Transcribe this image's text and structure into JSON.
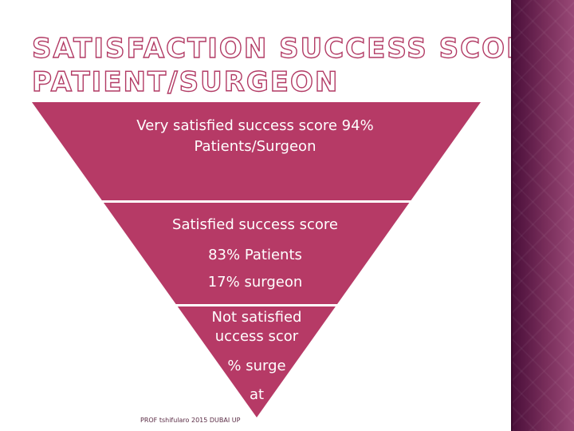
{
  "title": {
    "line1": "SATISFACTION  SUCCESS SCORE",
    "line2": "PATIENT/SURGEON"
  },
  "pyramid": {
    "band1": {
      "line1": "Very satisfied success score 94%",
      "line2": "Patients/Surgeon"
    },
    "band2": {
      "line1": "Satisfied success score",
      "line2": "83% Patients",
      "line3": "17% surgeon"
    },
    "band3": {
      "line1": "Not satisfied",
      "line2": "uccess scor",
      "line3": "% surge",
      "line4": "at"
    }
  },
  "footer": {
    "text": "PROF tshifularo 2015 DUBAI UP"
  },
  "colors": {
    "band": "#b63a66",
    "title_outline": "#b23a64",
    "sidebar": "#6a2250"
  }
}
